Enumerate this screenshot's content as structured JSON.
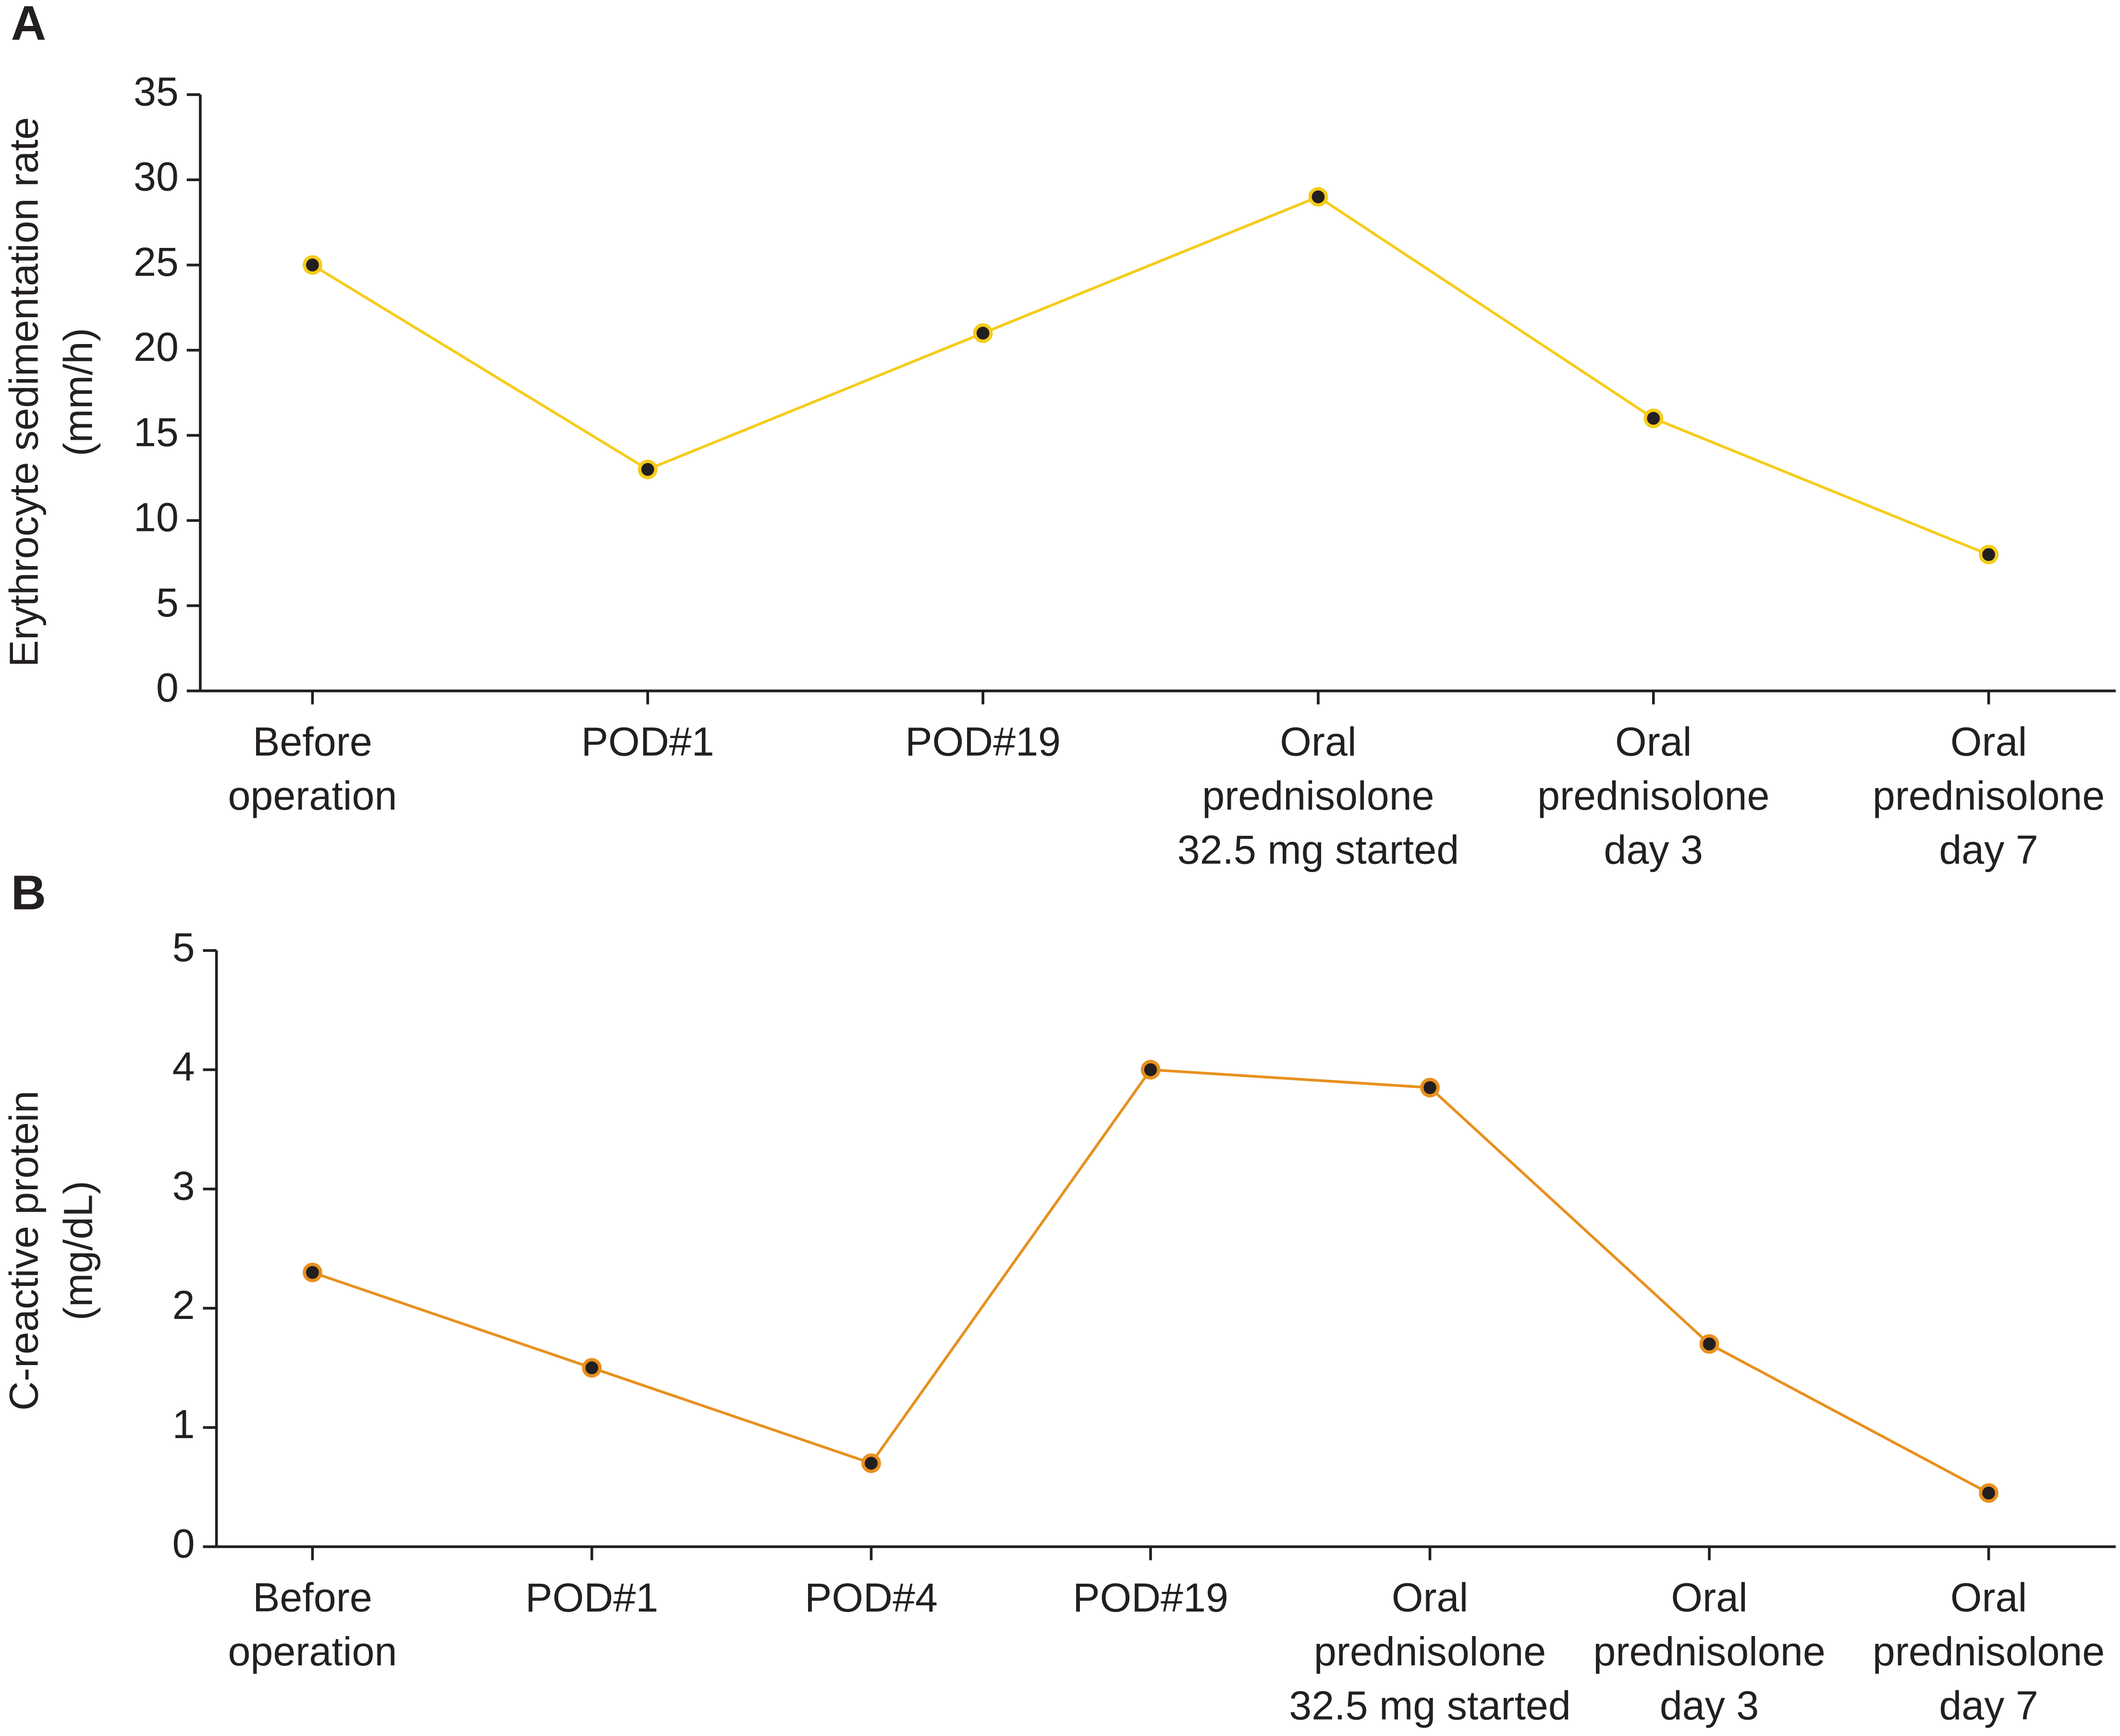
{
  "chart_data": [
    {
      "type": "line",
      "label": "A",
      "y_label": "Erythrocyte sedimentation rate\n(mm/h)",
      "categories": [
        "Before\noperation",
        "POD#1",
        "POD#19",
        "Oral\nprednisolone\n32.5 mg started",
        "Oral\nprednisolone\nday 3",
        "Oral\nprednisolone\nday 7"
      ],
      "series": [
        {
          "color": "#f5cc1a",
          "values": [
            25,
            13,
            21,
            29,
            16,
            8
          ]
        }
      ],
      "ylim": [
        0,
        35
      ],
      "yticks": [
        0,
        5,
        10,
        15,
        20,
        25,
        30,
        35
      ]
    },
    {
      "type": "line",
      "label": "B",
      "y_label": "C-reactive protein\n(mg/dL)",
      "categories": [
        "Before\noperation",
        "POD#1",
        "POD#4",
        "POD#19",
        "Oral\nprednisolone\n32.5 mg started",
        "Oral\nprednisolone\nday 3",
        "Oral\nprednisolone\nday 7"
      ],
      "series": [
        {
          "color": "#e8901e",
          "values": [
            2.3,
            1.5,
            0.7,
            4.0,
            3.85,
            1.7,
            0.45
          ]
        }
      ],
      "ylim": [
        0,
        5
      ],
      "yticks": [
        0,
        1,
        2,
        3,
        4,
        5
      ]
    }
  ]
}
